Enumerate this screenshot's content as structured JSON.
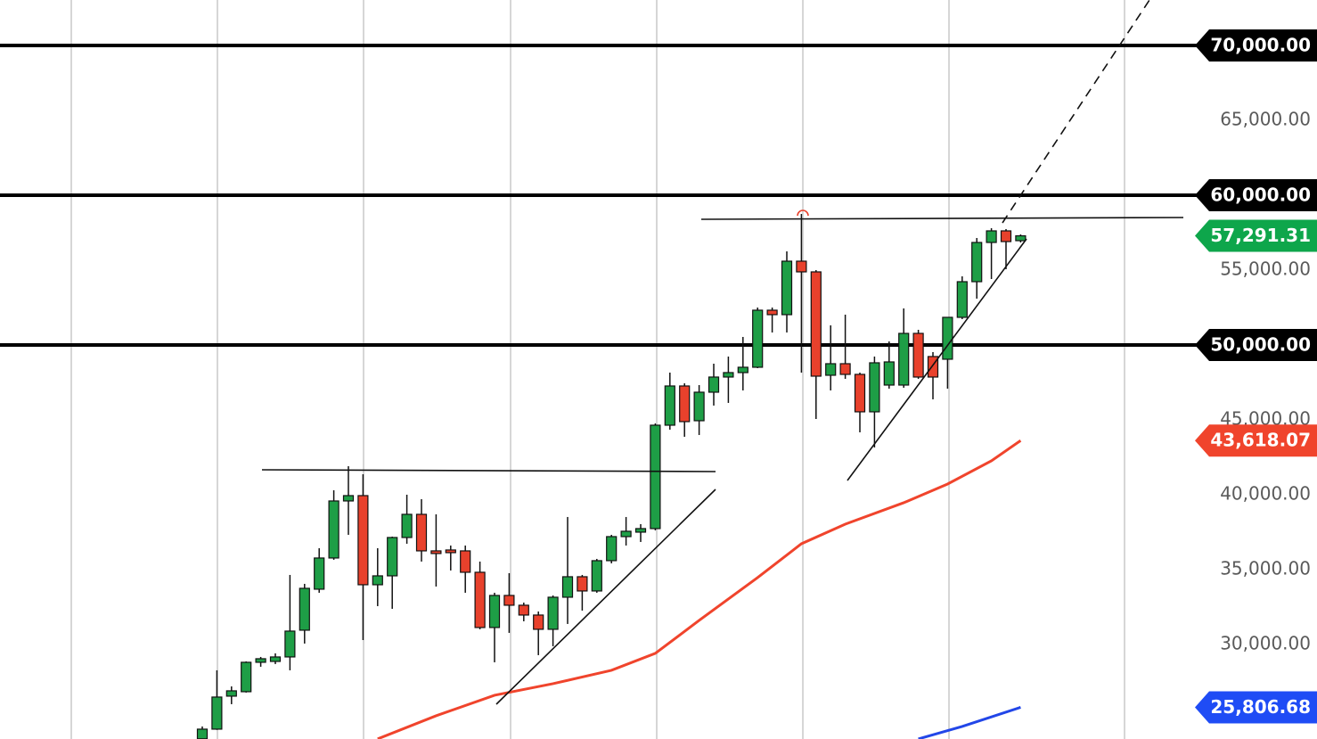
{
  "chart_data": {
    "type": "candlestick",
    "ylim": [
      23690,
      73036
    ],
    "yticks": [
      {
        "value": 30000,
        "label": "30,000.00"
      },
      {
        "value": 35000,
        "label": "35,000.00"
      },
      {
        "value": 40000,
        "label": "40,000.00"
      },
      {
        "value": 45000,
        "label": "45,000.00"
      },
      {
        "value": 50000,
        "label": "50,000.00"
      },
      {
        "value": 55000,
        "label": "55,000.00"
      },
      {
        "value": 60000,
        "label": "60,000.00"
      },
      {
        "value": 65000,
        "label": "65,000.00"
      },
      {
        "value": 70000,
        "label": "70,000.00"
      }
    ],
    "grid": true,
    "up_color": "#1e9e46",
    "down_color": "#e8412c",
    "open": [
      23700,
      24348,
      26551,
      26848,
      28812,
      28870,
      29169,
      30955,
      33693,
      35776,
      39585,
      39942,
      33990,
      34585,
      37145,
      38692,
      36252,
      36312,
      36252,
      34823,
      31134,
      33276,
      32622,
      31967,
      31015,
      33157,
      34526,
      33574,
      35598,
      37204,
      37502,
      37740,
      44644,
      47263,
      44942,
      46847,
      47859,
      48156,
      48513,
      52323,
      52025,
      55596,
      54882,
      47978,
      48751,
      48037,
      45537,
      47323,
      47323,
      50775,
      49228,
      49049,
      51846,
      54227,
      56846,
      57620,
      56965
    ],
    "high": [
      24527,
      28277,
      27202,
      28870,
      29169,
      29407,
      34645,
      34050,
      36430,
      40300,
      41906,
      41370,
      36430,
      37204,
      40002,
      39704,
      38692,
      36609,
      36609,
      35538,
      33455,
      34764,
      32800,
      32205,
      33276,
      38514,
      34645,
      35716,
      37323,
      38514,
      38038,
      44763,
      48156,
      47442,
      47323,
      48751,
      49228,
      50537,
      52501,
      52501,
      56251,
      58751,
      55000,
      51311,
      52025,
      48156,
      49228,
      50239,
      52441,
      51013,
      49525,
      51846,
      54584,
      57144,
      57799,
      57739,
      57382
    ],
    "low": [
      23500,
      24300,
      26015,
      26790,
      28514,
      28693,
      28277,
      30062,
      33455,
      35657,
      37323,
      30300,
      32562,
      32383,
      36728,
      35538,
      33871,
      34943,
      33455,
      31015,
      28812,
      30777,
      31550,
      29288,
      29883,
      31372,
      32264,
      33455,
      35419,
      36609,
      36847,
      37621,
      44346,
      43871,
      43990,
      45954,
      46133,
      46966,
      48453,
      50835,
      50835,
      48156,
      45061,
      46966,
      47740,
      44168,
      43157,
      47085,
      47144,
      47740,
      46371,
      47085,
      51727,
      53096,
      54405,
      55061,
      56846
    ],
    "close": [
      24348,
      26491,
      26907,
      28812,
      29050,
      29169,
      30895,
      33752,
      35776,
      39585,
      39942,
      33990,
      34585,
      37145,
      38692,
      36252,
      36074,
      36133,
      34823,
      31134,
      33276,
      32622,
      31967,
      31015,
      33157,
      34526,
      33574,
      35598,
      37204,
      37561,
      37740,
      44644,
      47263,
      44882,
      46847,
      47859,
      48156,
      48513,
      52323,
      52025,
      55596,
      54882,
      47918,
      48751,
      48037,
      45537,
      48811,
      48870,
      50775,
      47859,
      47859,
      51846,
      54227,
      56846,
      57620,
      56905,
      57291.31
    ],
    "lines": [
      {
        "color": "#f0442c",
        "x": [
          12,
          16,
          20,
          24,
          28,
          31,
          34,
          38,
          41,
          44,
          48,
          51,
          54,
          56
        ],
        "values": [
          23694,
          25241,
          26609,
          27383,
          28277,
          29407,
          31610,
          34466,
          36728,
          38038,
          39466,
          40716,
          42263,
          43618.07
        ]
      },
      {
        "color": "#2246e8",
        "x": [
          49,
          52,
          56
        ],
        "values": [
          23694,
          24527,
          25806.68
        ]
      }
    ],
    "levels": [
      {
        "value": 70000,
        "label": "70,000.00",
        "color": "#000000"
      },
      {
        "value": 60000,
        "label": "60,000.00",
        "color": "#000000"
      },
      {
        "value": 50000,
        "label": "50,000.00",
        "color": "#000000"
      }
    ],
    "markers": [
      {
        "value": 57291.31,
        "label": "57,291.31",
        "color": "#0ea64b"
      },
      {
        "value": 43618.07,
        "label": "43,618.07",
        "color": "#f0442c"
      },
      {
        "value": 25806.68,
        "label": "25,806.68",
        "color": "#1f4cf5"
      }
    ]
  }
}
